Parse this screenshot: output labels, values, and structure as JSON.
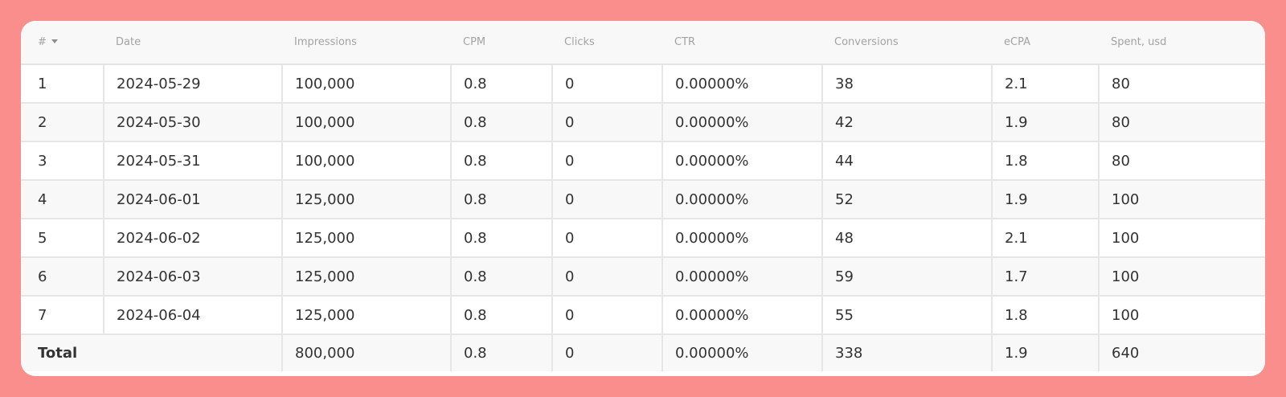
{
  "table": {
    "columns": [
      "#",
      "Date",
      "Impressions",
      "CPM",
      "Clicks",
      "CTR",
      "Conversions",
      "eCPA",
      "Spent, usd"
    ],
    "sort_icon": "caret-down-icon",
    "rows": [
      [
        "1",
        "2024-05-29",
        "100,000",
        "0.8",
        "0",
        "0.00000%",
        "38",
        "2.1",
        "80"
      ],
      [
        "2",
        "2024-05-30",
        "100,000",
        "0.8",
        "0",
        "0.00000%",
        "42",
        "1.9",
        "80"
      ],
      [
        "3",
        "2024-05-31",
        "100,000",
        "0.8",
        "0",
        "0.00000%",
        "44",
        "1.8",
        "80"
      ],
      [
        "4",
        "2024-06-01",
        "125,000",
        "0.8",
        "0",
        "0.00000%",
        "52",
        "1.9",
        "100"
      ],
      [
        "5",
        "2024-06-02",
        "125,000",
        "0.8",
        "0",
        "0.00000%",
        "48",
        "2.1",
        "100"
      ],
      [
        "6",
        "2024-06-03",
        "125,000",
        "0.8",
        "0",
        "0.00000%",
        "59",
        "1.7",
        "100"
      ],
      [
        "7",
        "2024-06-04",
        "125,000",
        "0.8",
        "0",
        "0.00000%",
        "55",
        "1.8",
        "100"
      ]
    ],
    "total": {
      "label": "Total",
      "impressions": "800,000",
      "cpm": "0.8",
      "clicks": "0",
      "ctr": "0.00000%",
      "conversions": "338",
      "ecpa": "1.9",
      "spent": "640"
    }
  },
  "colors": {
    "background": "#f98e8c",
    "card": "#ffffff",
    "row_alt": "#f8f8f8",
    "header_text": "#a3a3a3",
    "body_text": "#333333",
    "border": "#e6e6e6"
  }
}
